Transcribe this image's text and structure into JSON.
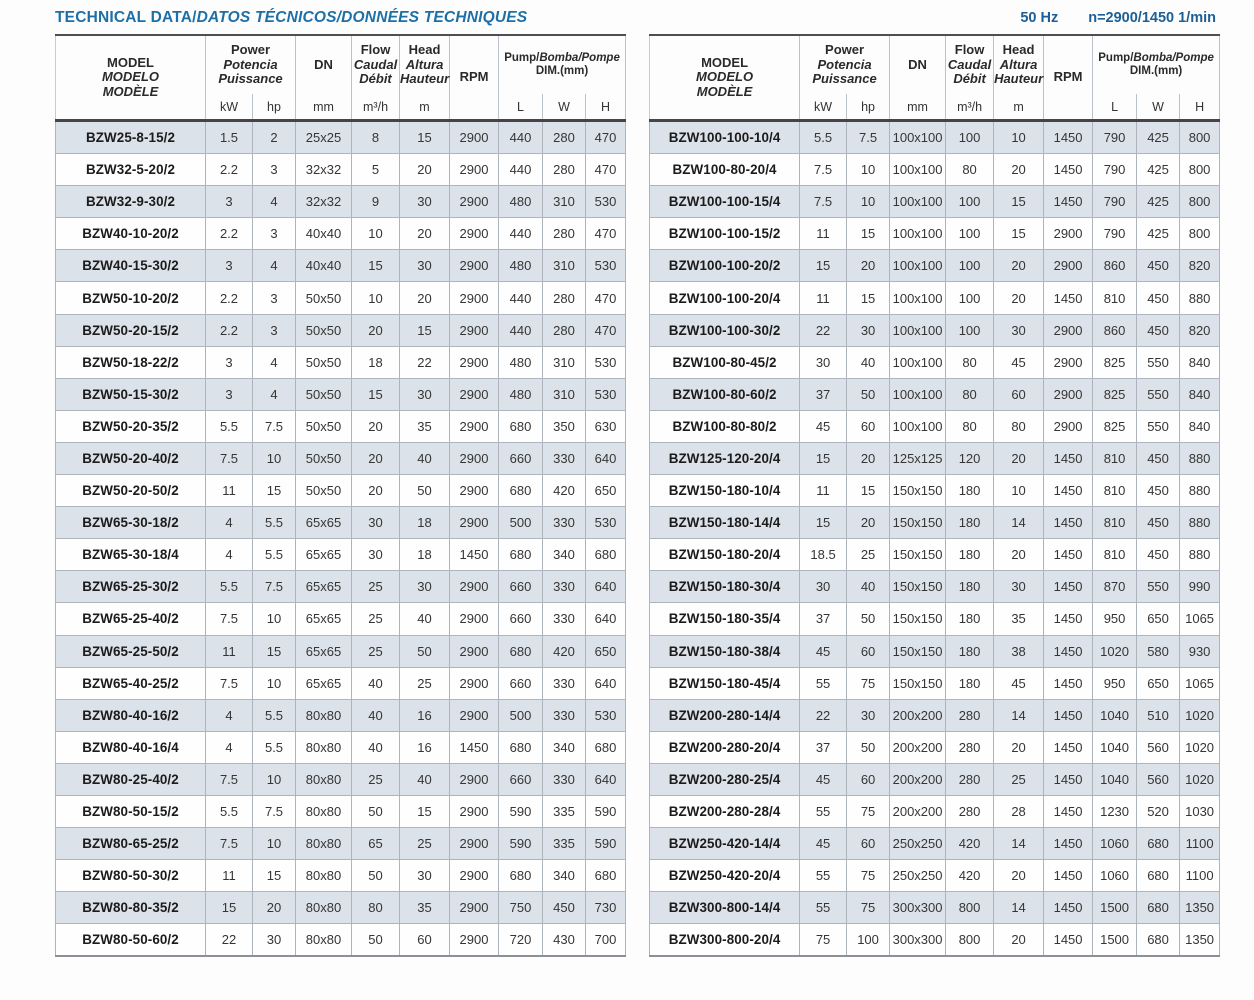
{
  "page": {
    "title_roman": "TECHNICAL DATA/",
    "title_italic": "DATOS TÉCNICOS/DONNÉES TECHNIQUES",
    "frequency": "50 Hz",
    "speed": "n=2900/1450 1/min"
  },
  "colors": {
    "title_blue": "#1d6fa7",
    "rates_blue": "#1c5e95",
    "row_stripe": "#dce2e9",
    "row_plain": "#fefefe",
    "grid_line": "#aeb4bb",
    "heavy_line": "#454545"
  },
  "header": {
    "model": [
      "MODEL",
      "MODELO",
      "MODÈLE"
    ],
    "power": [
      "Power",
      "Potencia",
      "Puissance"
    ],
    "dn": "DN",
    "flow": [
      "Flow",
      "Caudal",
      "Débit"
    ],
    "head": [
      "Head",
      "Altura",
      "Hauteur"
    ],
    "rpm": "RPM",
    "pump_roman": "Pump/",
    "pump_italic": "Bomba/Pompe",
    "pump_dim": "DIM.(mm)",
    "units": [
      "kW",
      "hp",
      "mm",
      "m³/h",
      "m",
      "L",
      "W",
      "H"
    ]
  },
  "tables": [
    {
      "rows": [
        [
          "BZW25-8-15/2",
          "1.5",
          "2",
          "25x25",
          "8",
          "15",
          "2900",
          "440",
          "280",
          "470"
        ],
        [
          "BZW32-5-20/2",
          "2.2",
          "3",
          "32x32",
          "5",
          "20",
          "2900",
          "440",
          "280",
          "470"
        ],
        [
          "BZW32-9-30/2",
          "3",
          "4",
          "32x32",
          "9",
          "30",
          "2900",
          "480",
          "310",
          "530"
        ],
        [
          "BZW40-10-20/2",
          "2.2",
          "3",
          "40x40",
          "10",
          "20",
          "2900",
          "440",
          "280",
          "470"
        ],
        [
          "BZW40-15-30/2",
          "3",
          "4",
          "40x40",
          "15",
          "30",
          "2900",
          "480",
          "310",
          "530"
        ],
        [
          "BZW50-10-20/2",
          "2.2",
          "3",
          "50x50",
          "10",
          "20",
          "2900",
          "440",
          "280",
          "470"
        ],
        [
          "BZW50-20-15/2",
          "2.2",
          "3",
          "50x50",
          "20",
          "15",
          "2900",
          "440",
          "280",
          "470"
        ],
        [
          "BZW50-18-22/2",
          "3",
          "4",
          "50x50",
          "18",
          "22",
          "2900",
          "480",
          "310",
          "530"
        ],
        [
          "BZW50-15-30/2",
          "3",
          "4",
          "50x50",
          "15",
          "30",
          "2900",
          "480",
          "310",
          "530"
        ],
        [
          "BZW50-20-35/2",
          "5.5",
          "7.5",
          "50x50",
          "20",
          "35",
          "2900",
          "680",
          "350",
          "630"
        ],
        [
          "BZW50-20-40/2",
          "7.5",
          "10",
          "50x50",
          "20",
          "40",
          "2900",
          "660",
          "330",
          "640"
        ],
        [
          "BZW50-20-50/2",
          "11",
          "15",
          "50x50",
          "20",
          "50",
          "2900",
          "680",
          "420",
          "650"
        ],
        [
          "BZW65-30-18/2",
          "4",
          "5.5",
          "65x65",
          "30",
          "18",
          "2900",
          "500",
          "330",
          "530"
        ],
        [
          "BZW65-30-18/4",
          "4",
          "5.5",
          "65x65",
          "30",
          "18",
          "1450",
          "680",
          "340",
          "680"
        ],
        [
          "BZW65-25-30/2",
          "5.5",
          "7.5",
          "65x65",
          "25",
          "30",
          "2900",
          "660",
          "330",
          "640"
        ],
        [
          "BZW65-25-40/2",
          "7.5",
          "10",
          "65x65",
          "25",
          "40",
          "2900",
          "660",
          "330",
          "640"
        ],
        [
          "BZW65-25-50/2",
          "11",
          "15",
          "65x65",
          "25",
          "50",
          "2900",
          "680",
          "420",
          "650"
        ],
        [
          "BZW65-40-25/2",
          "7.5",
          "10",
          "65x65",
          "40",
          "25",
          "2900",
          "660",
          "330",
          "640"
        ],
        [
          "BZW80-40-16/2",
          "4",
          "5.5",
          "80x80",
          "40",
          "16",
          "2900",
          "500",
          "330",
          "530"
        ],
        [
          "BZW80-40-16/4",
          "4",
          "5.5",
          "80x80",
          "40",
          "16",
          "1450",
          "680",
          "340",
          "680"
        ],
        [
          "BZW80-25-40/2",
          "7.5",
          "10",
          "80x80",
          "25",
          "40",
          "2900",
          "660",
          "330",
          "640"
        ],
        [
          "BZW80-50-15/2",
          "5.5",
          "7.5",
          "80x80",
          "50",
          "15",
          "2900",
          "590",
          "335",
          "590"
        ],
        [
          "BZW80-65-25/2",
          "7.5",
          "10",
          "80x80",
          "65",
          "25",
          "2900",
          "590",
          "335",
          "590"
        ],
        [
          "BZW80-50-30/2",
          "11",
          "15",
          "80x80",
          "50",
          "30",
          "2900",
          "680",
          "340",
          "680"
        ],
        [
          "BZW80-80-35/2",
          "15",
          "20",
          "80x80",
          "80",
          "35",
          "2900",
          "750",
          "450",
          "730"
        ],
        [
          "BZW80-50-60/2",
          "22",
          "30",
          "80x80",
          "50",
          "60",
          "2900",
          "720",
          "430",
          "700"
        ]
      ]
    },
    {
      "rows": [
        [
          "BZW100-100-10/4",
          "5.5",
          "7.5",
          "100x100",
          "100",
          "10",
          "1450",
          "790",
          "425",
          "800"
        ],
        [
          "BZW100-80-20/4",
          "7.5",
          "10",
          "100x100",
          "80",
          "20",
          "1450",
          "790",
          "425",
          "800"
        ],
        [
          "BZW100-100-15/4",
          "7.5",
          "10",
          "100x100",
          "100",
          "15",
          "1450",
          "790",
          "425",
          "800"
        ],
        [
          "BZW100-100-15/2",
          "11",
          "15",
          "100x100",
          "100",
          "15",
          "2900",
          "790",
          "425",
          "800"
        ],
        [
          "BZW100-100-20/2",
          "15",
          "20",
          "100x100",
          "100",
          "20",
          "2900",
          "860",
          "450",
          "820"
        ],
        [
          "BZW100-100-20/4",
          "11",
          "15",
          "100x100",
          "100",
          "20",
          "1450",
          "810",
          "450",
          "880"
        ],
        [
          "BZW100-100-30/2",
          "22",
          "30",
          "100x100",
          "100",
          "30",
          "2900",
          "860",
          "450",
          "820"
        ],
        [
          "BZW100-80-45/2",
          "30",
          "40",
          "100x100",
          "80",
          "45",
          "2900",
          "825",
          "550",
          "840"
        ],
        [
          "BZW100-80-60/2",
          "37",
          "50",
          "100x100",
          "80",
          "60",
          "2900",
          "825",
          "550",
          "840"
        ],
        [
          "BZW100-80-80/2",
          "45",
          "60",
          "100x100",
          "80",
          "80",
          "2900",
          "825",
          "550",
          "840"
        ],
        [
          "BZW125-120-20/4",
          "15",
          "20",
          "125x125",
          "120",
          "20",
          "1450",
          "810",
          "450",
          "880"
        ],
        [
          "BZW150-180-10/4",
          "11",
          "15",
          "150x150",
          "180",
          "10",
          "1450",
          "810",
          "450",
          "880"
        ],
        [
          "BZW150-180-14/4",
          "15",
          "20",
          "150x150",
          "180",
          "14",
          "1450",
          "810",
          "450",
          "880"
        ],
        [
          "BZW150-180-20/4",
          "18.5",
          "25",
          "150x150",
          "180",
          "20",
          "1450",
          "810",
          "450",
          "880"
        ],
        [
          "BZW150-180-30/4",
          "30",
          "40",
          "150x150",
          "180",
          "30",
          "1450",
          "870",
          "550",
          "990"
        ],
        [
          "BZW150-180-35/4",
          "37",
          "50",
          "150x150",
          "180",
          "35",
          "1450",
          "950",
          "650",
          "1065"
        ],
        [
          "BZW150-180-38/4",
          "45",
          "60",
          "150x150",
          "180",
          "38",
          "1450",
          "1020",
          "580",
          "930"
        ],
        [
          "BZW150-180-45/4",
          "55",
          "75",
          "150x150",
          "180",
          "45",
          "1450",
          "950",
          "650",
          "1065"
        ],
        [
          "BZW200-280-14/4",
          "22",
          "30",
          "200x200",
          "280",
          "14",
          "1450",
          "1040",
          "510",
          "1020"
        ],
        [
          "BZW200-280-20/4",
          "37",
          "50",
          "200x200",
          "280",
          "20",
          "1450",
          "1040",
          "560",
          "1020"
        ],
        [
          "BZW200-280-25/4",
          "45",
          "60",
          "200x200",
          "280",
          "25",
          "1450",
          "1040",
          "560",
          "1020"
        ],
        [
          "BZW200-280-28/4",
          "55",
          "75",
          "200x200",
          "280",
          "28",
          "1450",
          "1230",
          "520",
          "1030"
        ],
        [
          "BZW250-420-14/4",
          "45",
          "60",
          "250x250",
          "420",
          "14",
          "1450",
          "1060",
          "680",
          "1100"
        ],
        [
          "BZW250-420-20/4",
          "55",
          "75",
          "250x250",
          "420",
          "20",
          "1450",
          "1060",
          "680",
          "1100"
        ],
        [
          "BZW300-800-14/4",
          "55",
          "75",
          "300x300",
          "800",
          "14",
          "1450",
          "1500",
          "680",
          "1350"
        ],
        [
          "BZW300-800-20/4",
          "75",
          "100",
          "300x300",
          "800",
          "20",
          "1450",
          "1500",
          "680",
          "1350"
        ]
      ]
    }
  ]
}
